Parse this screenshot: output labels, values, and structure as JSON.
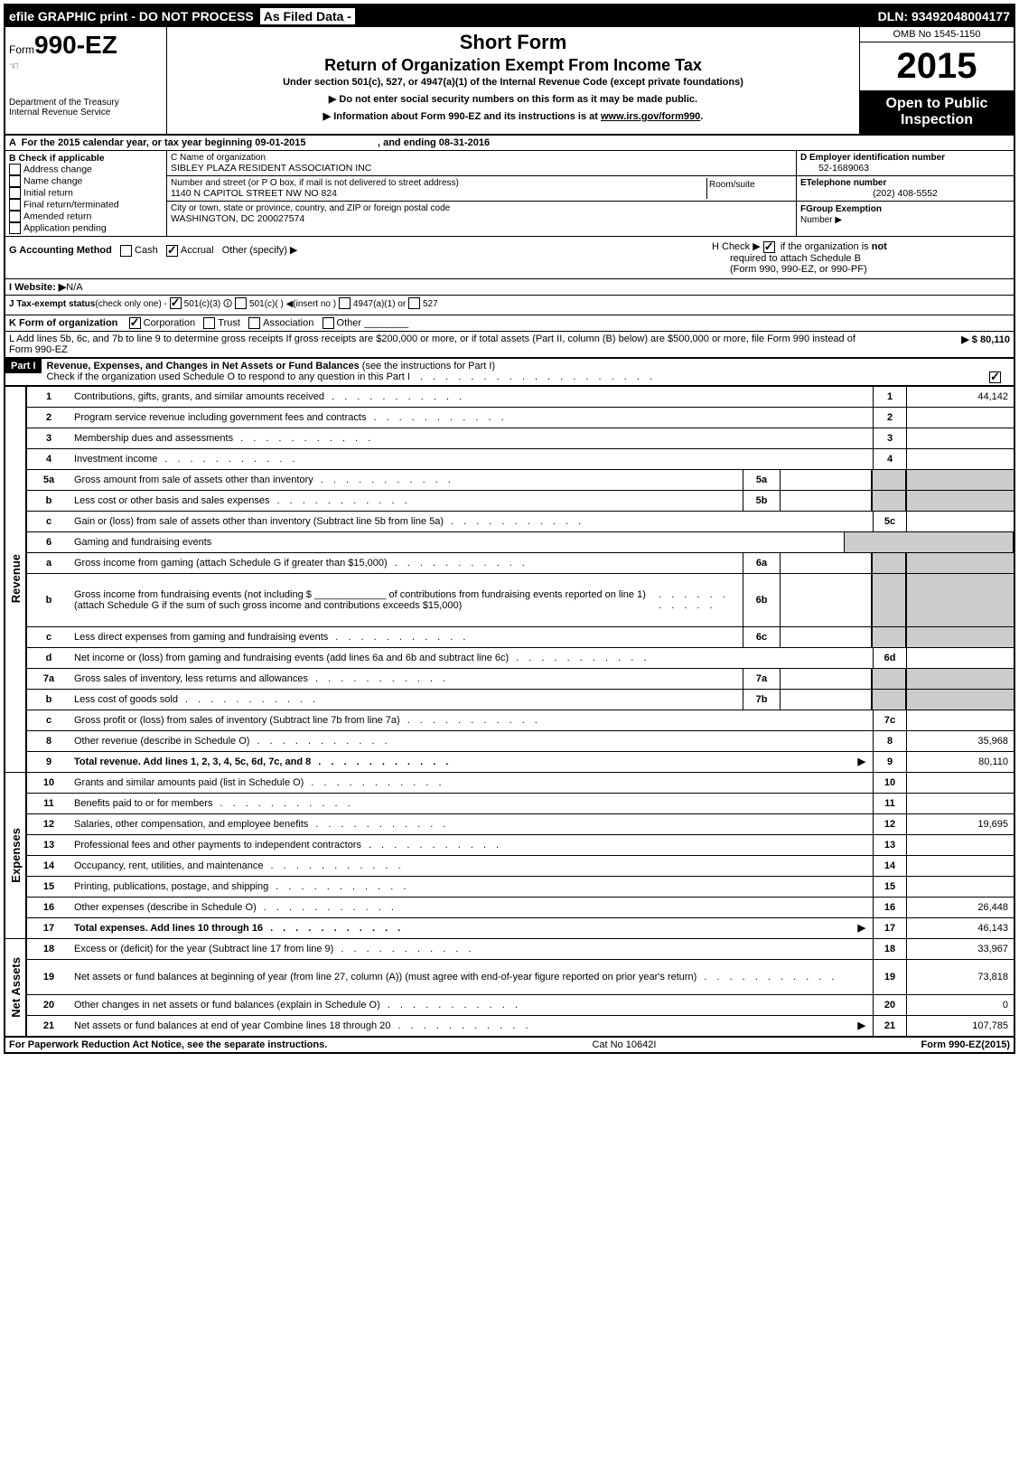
{
  "topbar": {
    "efile": "efile GRAPHIC print - DO NOT PROCESS",
    "asfiled": "As Filed Data -",
    "dln": "DLN: 93492048004177"
  },
  "header": {
    "form_prefix": "Form",
    "form_number": "990-EZ",
    "dept": "Department of the Treasury",
    "irs": "Internal Revenue Service",
    "short_form": "Short Form",
    "return_title": "Return of Organization Exempt From Income Tax",
    "under_section": "Under section 501(c), 527, or 4947(a)(1) of the Internal Revenue Code (except private foundations)",
    "instr1": "▶ Do not enter social security numbers on this form as it may be made public.",
    "instr2_pre": "▶ Information about Form 990-EZ and its instructions is at ",
    "instr2_link": "www.irs.gov/form990",
    "omb": "OMB No 1545-1150",
    "year": "2015",
    "open1": "Open to Public",
    "open2": "Inspection"
  },
  "rowA": "A  For the 2015 calendar year, or tax year beginning 09-01-2015                          , and ending 08-31-2016",
  "B": {
    "hdr": "B  Check if applicable",
    "items": [
      "Address change",
      "Name change",
      "Initial return",
      "Final return/terminated",
      "Amended return",
      "Application pending"
    ]
  },
  "C": {
    "name_label": "C Name of organization",
    "name": "SIBLEY PLAZA RESIDENT ASSOCIATION INC",
    "street_label": "Number and street (or P O box, if mail is not delivered to street address)",
    "room_label": "Room/suite",
    "street": "1140 N CAPITOL STREET NW NO 824",
    "city_label": "City or town, state or province, country, and ZIP or foreign postal code",
    "city": "WASHINGTON, DC 200027574"
  },
  "D": {
    "label": "D Employer identification number",
    "value": "52-1689063"
  },
  "E": {
    "label": "ETelephone number",
    "value": "(202) 408-5552"
  },
  "F": {
    "label": "FGroup Exemption",
    "label2": "Number    ▶"
  },
  "G": {
    "label": "G Accounting Method",
    "cash": "Cash",
    "accrual": "Accrual",
    "other": "Other (specify) ▶"
  },
  "H": {
    "line1_pre": "H   Check ▶ ",
    "line1_post": " if the organization is ",
    "not": "not",
    "line2": "required to attach Schedule B",
    "line3": "(Form 990, 990-EZ, or 990-PF)"
  },
  "I": {
    "label": "I Website: ▶",
    "value": "N/A"
  },
  "J": {
    "label": "J Tax-exempt status",
    "note": "(check only one) -",
    "o1": "501(c)(3)",
    "o2": "501(c)( ) ◀(insert no )",
    "o3": "4947(a)(1) or",
    "o4": "527"
  },
  "K": {
    "label": "K Form of organization",
    "o1": "Corporation",
    "o2": "Trust",
    "o3": "Association",
    "o4": "Other"
  },
  "L": {
    "text": "L Add lines 5b, 6c, and 7b to line 9 to determine gross receipts  If gross receipts are $200,000 or more, or if total assets (Part II, column (B) below) are $500,000 or more, file Form 990 instead of Form 990-EZ",
    "value": "▶ $ 80,110"
  },
  "part1": {
    "label": "Part I",
    "title": "Revenue, Expenses, and Changes in Net Assets or Fund Balances",
    "note": "(see the instructions for Part I)",
    "check": "Check if the organization used Schedule O to respond to any question in this Part I"
  },
  "sidebars": {
    "rev": "Revenue",
    "exp": "Expenses",
    "na": "Net Assets"
  },
  "lines": {
    "l1": {
      "n": "1",
      "d": "Contributions, gifts, grants, and similar amounts received",
      "r": "1",
      "v": "44,142"
    },
    "l2": {
      "n": "2",
      "d": "Program service revenue including government fees and contracts",
      "r": "2",
      "v": ""
    },
    "l3": {
      "n": "3",
      "d": "Membership dues and assessments",
      "r": "3",
      "v": ""
    },
    "l4": {
      "n": "4",
      "d": "Investment income",
      "r": "4",
      "v": ""
    },
    "l5a": {
      "n": "5a",
      "d": "Gross amount from sale of assets other than inventory",
      "m": "5a"
    },
    "l5b": {
      "n": "b",
      "d": "Less  cost or other basis and sales expenses",
      "m": "5b"
    },
    "l5c": {
      "n": "c",
      "d": "Gain or (loss) from sale of assets other than inventory (Subtract line 5b from line 5a)",
      "r": "5c",
      "v": ""
    },
    "l6": {
      "n": "6",
      "d": "Gaming and fundraising events"
    },
    "l6a": {
      "n": "a",
      "d": "Gross income from gaming (attach Schedule G if greater than $15,000)",
      "m": "6a"
    },
    "l6b": {
      "n": "b",
      "d": "Gross income from fundraising events (not including $ _____________ of contributions from fundraising events reported on line 1) (attach Schedule G if the sum of such gross income and contributions exceeds $15,000)",
      "m": "6b"
    },
    "l6c": {
      "n": "c",
      "d": "Less  direct expenses from gaming and fundraising events",
      "m": "6c"
    },
    "l6d": {
      "n": "d",
      "d": "Net income or (loss) from gaming and fundraising events (add lines 6a and 6b and subtract line 6c)",
      "r": "6d",
      "v": ""
    },
    "l7a": {
      "n": "7a",
      "d": "Gross sales of inventory, less returns and allowances",
      "m": "7a"
    },
    "l7b": {
      "n": "b",
      "d": "Less  cost of goods sold",
      "m": "7b"
    },
    "l7c": {
      "n": "c",
      "d": "Gross profit or (loss) from sales of inventory (Subtract line 7b from line 7a)",
      "r": "7c",
      "v": ""
    },
    "l8": {
      "n": "8",
      "d": "Other revenue (describe in Schedule O)",
      "r": "8",
      "v": "35,968"
    },
    "l9": {
      "n": "9",
      "d": "Total revenue. Add lines 1, 2, 3, 4, 5c, 6d, 7c, and 8",
      "r": "9",
      "v": "80,110",
      "arrow": "▶",
      "bold": true
    },
    "l10": {
      "n": "10",
      "d": "Grants and similar amounts paid (list in Schedule O)",
      "r": "10",
      "v": ""
    },
    "l11": {
      "n": "11",
      "d": "Benefits paid to or for members",
      "r": "11",
      "v": ""
    },
    "l12": {
      "n": "12",
      "d": "Salaries, other compensation, and employee benefits",
      "r": "12",
      "v": "19,695"
    },
    "l13": {
      "n": "13",
      "d": "Professional fees and other payments to independent contractors",
      "r": "13",
      "v": ""
    },
    "l14": {
      "n": "14",
      "d": "Occupancy, rent, utilities, and maintenance",
      "r": "14",
      "v": ""
    },
    "l15": {
      "n": "15",
      "d": "Printing, publications, postage, and shipping",
      "r": "15",
      "v": ""
    },
    "l16": {
      "n": "16",
      "d": "Other expenses (describe in Schedule O)",
      "r": "16",
      "v": "26,448"
    },
    "l17": {
      "n": "17",
      "d": "Total expenses. Add lines 10 through 16",
      "r": "17",
      "v": "46,143",
      "arrow": "▶",
      "bold": true
    },
    "l18": {
      "n": "18",
      "d": "Excess or (deficit) for the year (Subtract line 17 from line 9)",
      "r": "18",
      "v": "33,967"
    },
    "l19": {
      "n": "19",
      "d": "Net assets or fund balances at beginning of year (from line 27, column (A)) (must agree with end-of-year figure reported on prior year's return)",
      "r": "19",
      "v": "73,818"
    },
    "l20": {
      "n": "20",
      "d": "Other changes in net assets or fund balances (explain in Schedule O)",
      "r": "20",
      "v": "0"
    },
    "l21": {
      "n": "21",
      "d": "Net assets or fund balances at end of year  Combine lines 18 through 20",
      "r": "21",
      "v": "107,785",
      "arrow": "▶"
    }
  },
  "footer": {
    "left": "For Paperwork Reduction Act Notice, see the separate instructions.",
    "mid": "Cat No 10642I",
    "right": "Form 990-EZ (2015)",
    "right_bold": "990-EZ"
  }
}
